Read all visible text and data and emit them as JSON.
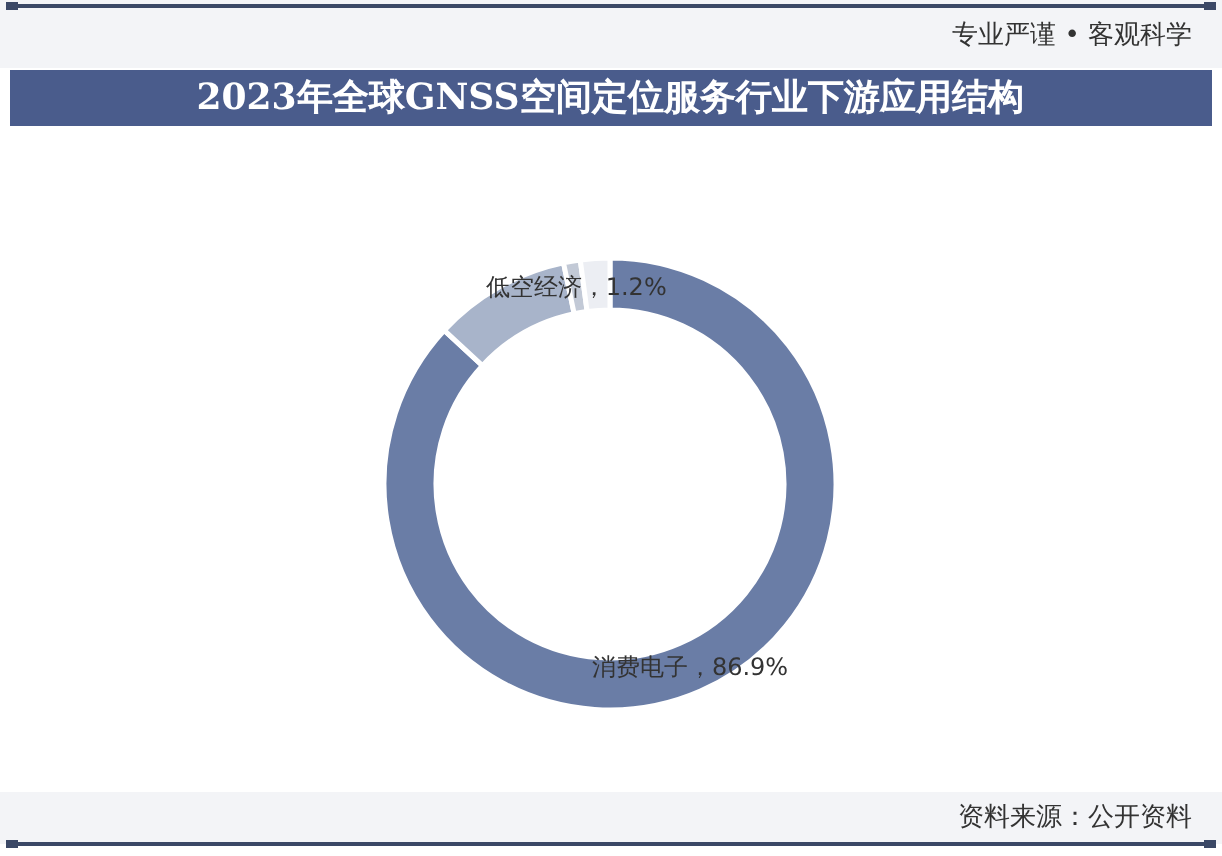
{
  "chart_data": {
    "type": "donut",
    "title": "2023年全球GNSS空间定位服务行业下游应用结构",
    "categories": [
      "消费电子",
      null,
      "低空经济",
      null
    ],
    "values": [
      86.9,
      9.8,
      1.2,
      2.1
    ],
    "colors": [
      "#6a7da6",
      "#a8b4ca",
      "#c2c9d6",
      "#eceef3"
    ],
    "value_labels": [
      "86.9%",
      null,
      "1.2%",
      null
    ],
    "annotations": [
      "专业严谨 • 客观科学",
      "资料来源：公开资料"
    ]
  }
}
